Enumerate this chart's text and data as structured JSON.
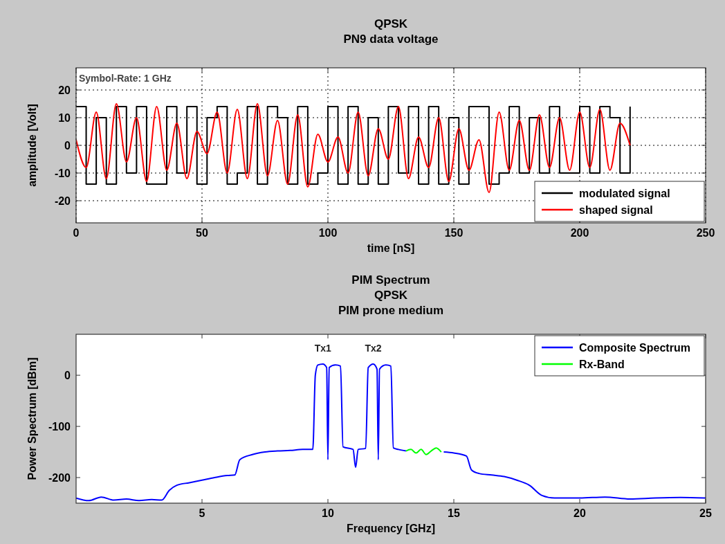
{
  "chart_data": [
    {
      "type": "line",
      "title": "QPSK",
      "subtitle": "PN9 data voltage",
      "xlabel": "time [nS]",
      "ylabel": "amplitude [Volt]",
      "xlim": [
        0,
        250
      ],
      "xticks": [
        0,
        50,
        100,
        150,
        200,
        250
      ],
      "ylim": [
        -28,
        28
      ],
      "yticks": [
        -20,
        -10,
        0,
        10,
        20
      ],
      "grid": true,
      "legend": "bottom right",
      "annotations": [
        "Symbol-Rate: 1 GHz"
      ],
      "series": [
        {
          "name": "modulated signal",
          "type": "step",
          "color": "#000000",
          "x": [
            0,
            4,
            8,
            12,
            16,
            20,
            24,
            28,
            32,
            36,
            40,
            44,
            48,
            52,
            56,
            60,
            64,
            68,
            72,
            76,
            80,
            84,
            88,
            92,
            96,
            100,
            104,
            108,
            112,
            116,
            120,
            124,
            128,
            132,
            136,
            140,
            144,
            148,
            152,
            156,
            160,
            164,
            168,
            172,
            176,
            180,
            184,
            188,
            192,
            196,
            200,
            204,
            208,
            212,
            216,
            220
          ],
          "values": [
            14,
            -14,
            10,
            -14,
            14,
            -10,
            14,
            -14,
            -14,
            14,
            -10,
            14,
            -14,
            10,
            14,
            -14,
            -10,
            14,
            -14,
            14,
            10,
            -14,
            14,
            -14,
            -10,
            14,
            -14,
            14,
            -14,
            10,
            -14,
            14,
            -10,
            14,
            -14,
            14,
            -14,
            10,
            -14,
            14,
            14,
            -14,
            -10,
            14,
            -10,
            10,
            -10,
            14,
            -10,
            -10,
            14,
            -10,
            14,
            10,
            -10,
            14
          ]
        },
        {
          "name": "shaped signal",
          "type": "line",
          "color": "#ff0000",
          "x": [
            0,
            4,
            8,
            12,
            16,
            20,
            24,
            28,
            32,
            36,
            40,
            44,
            48,
            52,
            56,
            60,
            64,
            68,
            72,
            76,
            80,
            84,
            88,
            92,
            96,
            100,
            104,
            108,
            112,
            116,
            120,
            124,
            128,
            132,
            136,
            140,
            144,
            148,
            152,
            156,
            160,
            164,
            168,
            172,
            176,
            180,
            184,
            188,
            192,
            196,
            200,
            204,
            208,
            212,
            216,
            220
          ],
          "values": [
            2,
            -8,
            12,
            -12,
            15,
            -6,
            10,
            -13,
            14,
            -9,
            8,
            -12,
            5,
            -3,
            12,
            -10,
            13,
            -12,
            15,
            -11,
            9,
            -14,
            11,
            -15,
            4,
            -6,
            3,
            -10,
            12,
            -11,
            6,
            -5,
            14,
            -12,
            3,
            -8,
            10,
            -13,
            6,
            -9,
            2,
            -17,
            12,
            -9,
            9,
            -9,
            11,
            -8,
            10,
            -9,
            12,
            -8,
            13,
            -9,
            8,
            0
          ]
        }
      ]
    },
    {
      "type": "line",
      "title": "PIM Spectrum",
      "subtitle": "QPSK\nPIM prone medium",
      "xlabel": "Frequency [GHz]",
      "ylabel": "Power Spectrum [dBm]",
      "xlim": [
        0,
        25
      ],
      "xticks": [
        5,
        10,
        15,
        20,
        25
      ],
      "ylim": [
        -250,
        80
      ],
      "yticks": [
        -200,
        -100,
        0
      ],
      "grid": false,
      "legend": "top right",
      "annotations": [
        {
          "text": "Tx1",
          "x": 9.8,
          "y": 22
        },
        {
          "text": "Tx2",
          "x": 11.8,
          "y": 22
        }
      ],
      "series": [
        {
          "name": "Composite Spectrum",
          "color": "#0000ff",
          "x": [
            0,
            0.5,
            1,
            1.5,
            2,
            2.5,
            3,
            3.4,
            3.7,
            4,
            4.5,
            5,
            5.5,
            6,
            6.3,
            6.5,
            7,
            7.5,
            8,
            8.5,
            9,
            9.4,
            9.5,
            9.6,
            9.8,
            9.95,
            10,
            10.05,
            10.3,
            10.5,
            10.6,
            11,
            11.1,
            11.2,
            11.5,
            11.6,
            11.8,
            11.95,
            12,
            12.05,
            12.3,
            12.5,
            12.6,
            12.8,
            13.1,
            13.8,
            14.6,
            15,
            15.5,
            15.7,
            16,
            16.5,
            17,
            17.5,
            18,
            18.5,
            19,
            20,
            21,
            22,
            23,
            24,
            25
          ],
          "values": [
            -240,
            -245,
            -238,
            -244,
            -242,
            -245,
            -243,
            -244,
            -225,
            -215,
            -210,
            -205,
            -200,
            -196,
            -195,
            -165,
            -155,
            -150,
            -148,
            -147,
            -145,
            -145,
            0,
            20,
            22,
            15,
            -165,
            15,
            20,
            18,
            -140,
            -145,
            -180,
            -145,
            -143,
            15,
            22,
            12,
            -165,
            12,
            20,
            18,
            -142,
            -145,
            -148,
            null,
            -150,
            -152,
            -158,
            -185,
            -192,
            -195,
            -198,
            -205,
            -215,
            -235,
            -240,
            -240,
            -238,
            -242,
            -240,
            -239,
            -240
          ]
        },
        {
          "name": "Rx-Band",
          "color": "#00ff00",
          "x": [
            13.1,
            13.3,
            13.5,
            13.7,
            13.9,
            14.1,
            14.3,
            14.5
          ],
          "values": [
            -148,
            -145,
            -152,
            -145,
            -155,
            -148,
            -142,
            -150
          ]
        }
      ]
    }
  ]
}
